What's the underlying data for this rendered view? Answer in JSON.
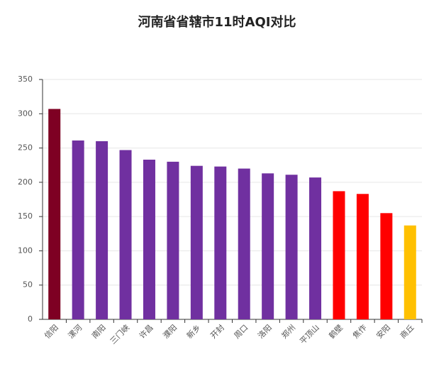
{
  "chart_data": {
    "type": "bar",
    "title": "河南省省辖市11时AQI对比",
    "categories": [
      "信阳",
      "漯河",
      "南阳",
      "三门峡",
      "许昌",
      "濮阳",
      "新乡",
      "开封",
      "周口",
      "洛阳",
      "郑州",
      "平顶山",
      "鹤壁",
      "焦作",
      "安阳",
      "商丘"
    ],
    "values": [
      307,
      261,
      260,
      247,
      233,
      230,
      224,
      223,
      220,
      213,
      211,
      207,
      187,
      183,
      155,
      137
    ],
    "colors": [
      "#7e0023",
      "#7030a0",
      "#7030a0",
      "#7030a0",
      "#7030a0",
      "#7030a0",
      "#7030a0",
      "#7030a0",
      "#7030a0",
      "#7030a0",
      "#7030a0",
      "#7030a0",
      "#ff0000",
      "#ff0000",
      "#ff0000",
      "#ffc000"
    ],
    "ylim": [
      0,
      350
    ],
    "yticks": [
      0,
      50,
      100,
      150,
      200,
      250,
      300,
      350
    ],
    "grid": true
  }
}
